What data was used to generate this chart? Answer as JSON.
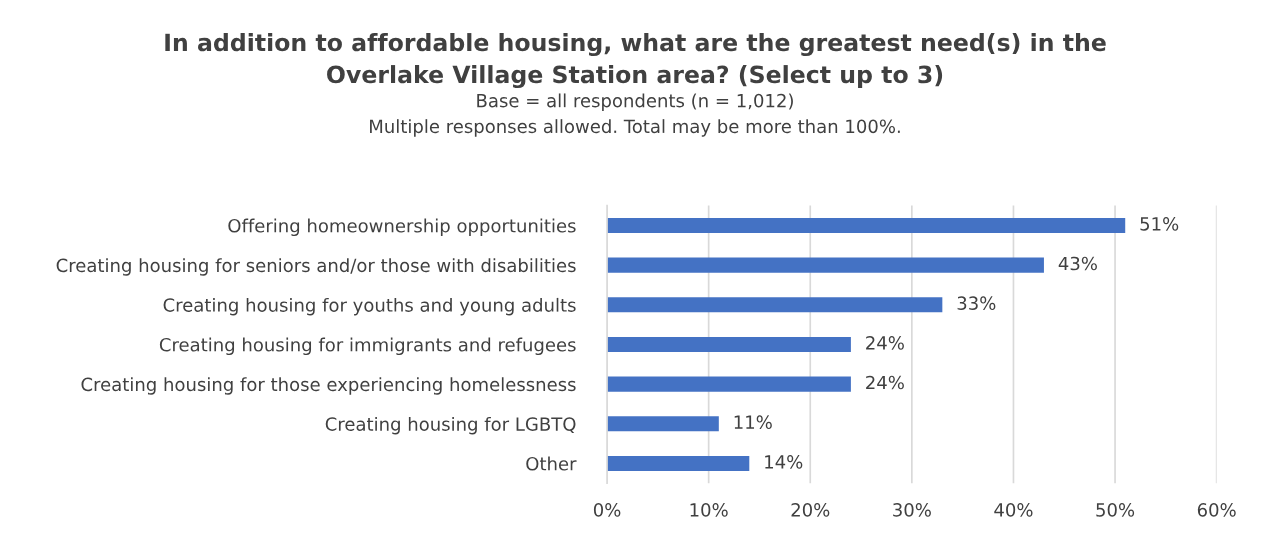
{
  "chart_data": {
    "type": "bar",
    "orientation": "horizontal",
    "title": "In addition to affordable housing, what are the greatest need(s) in the\nOverlake Village Station area? (Select up to 3)",
    "subtitle": "Base = all respondents (n = 1,012)\nMultiple responses allowed. Total may be more than 100%.",
    "categories": [
      "Offering homeownership opportunities",
      "Creating housing for seniors and/or those with disabilities",
      "Creating housing for youths and young adults",
      "Creating housing for immigrants and refugees",
      "Creating housing for those experiencing homelessness",
      "Creating housing for LGBTQ",
      "Other"
    ],
    "values": [
      51,
      43,
      33,
      24,
      24,
      11,
      14
    ],
    "value_labels": [
      "51%",
      "43%",
      "33%",
      "24%",
      "24%",
      "11%",
      "14%"
    ],
    "color": "#4472c4",
    "xlim": [
      0,
      60
    ],
    "xticks": [
      {
        "value": 0,
        "label": "0%"
      },
      {
        "value": 10,
        "label": "10%"
      },
      {
        "value": 20,
        "label": "20%"
      },
      {
        "value": 30,
        "label": "30%"
      },
      {
        "value": 40,
        "label": "40%"
      },
      {
        "value": 50,
        "label": "50%"
      },
      {
        "value": 60,
        "label": "60%"
      }
    ],
    "grid": "x"
  }
}
